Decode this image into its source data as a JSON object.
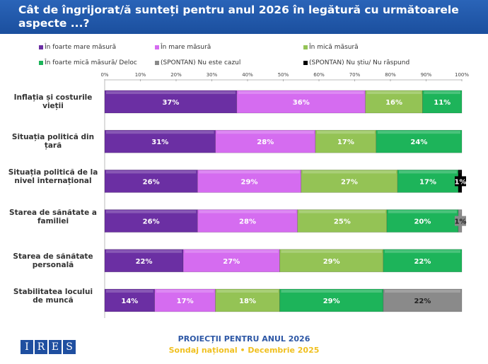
{
  "header": {
    "title": "Cât de îngrijorat/ă sunteți pentru anul 2026 în legătură cu următoarele aspecte ...?"
  },
  "footer": {
    "line1": "PROIECȚII PENTRU ANUL 2026",
    "line2": "Sondaj național • Decembrie 2025",
    "logo": "IRES"
  },
  "chart_data": {
    "type": "bar",
    "orientation": "horizontal-stacked-100",
    "xlim": [
      0,
      100
    ],
    "ticks": [
      "0%",
      "10%",
      "20%",
      "30%",
      "40%",
      "50%",
      "60%",
      "70%",
      "80%",
      "90%",
      "100%"
    ],
    "legend_position": "top",
    "categories": [
      "Inflația și costurile vieții",
      "Situația politică din țară",
      "Situația politică de la nivel internațional",
      "Starea de sănătate a familiei",
      "Starea de sănătate personală",
      "Stabilitatea locului de muncă"
    ],
    "series": [
      {
        "name": "În foarte mare măsură",
        "color": "#6b2fa3",
        "values": [
          37,
          31,
          26,
          26,
          22,
          14
        ]
      },
      {
        "name": "În mare măsură",
        "color": "#d56cf0",
        "values": [
          36,
          28,
          29,
          28,
          27,
          17
        ]
      },
      {
        "name": "În mică măsură",
        "color": "#94c355",
        "values": [
          16,
          17,
          27,
          25,
          29,
          18
        ]
      },
      {
        "name": "În foarte mică măsură/ Deloc",
        "color": "#1db45a",
        "values": [
          11,
          24,
          17,
          20,
          22,
          29
        ]
      },
      {
        "name": "(SPONTAN) Nu este cazul",
        "color": "#8a8a8a",
        "values": [
          0,
          0,
          0,
          1,
          0,
          22
        ]
      },
      {
        "name": "(SPONTAN) Nu știu/ Nu răspund",
        "color": "#000000",
        "values": [
          0,
          0,
          1,
          0,
          0,
          0
        ]
      }
    ]
  }
}
